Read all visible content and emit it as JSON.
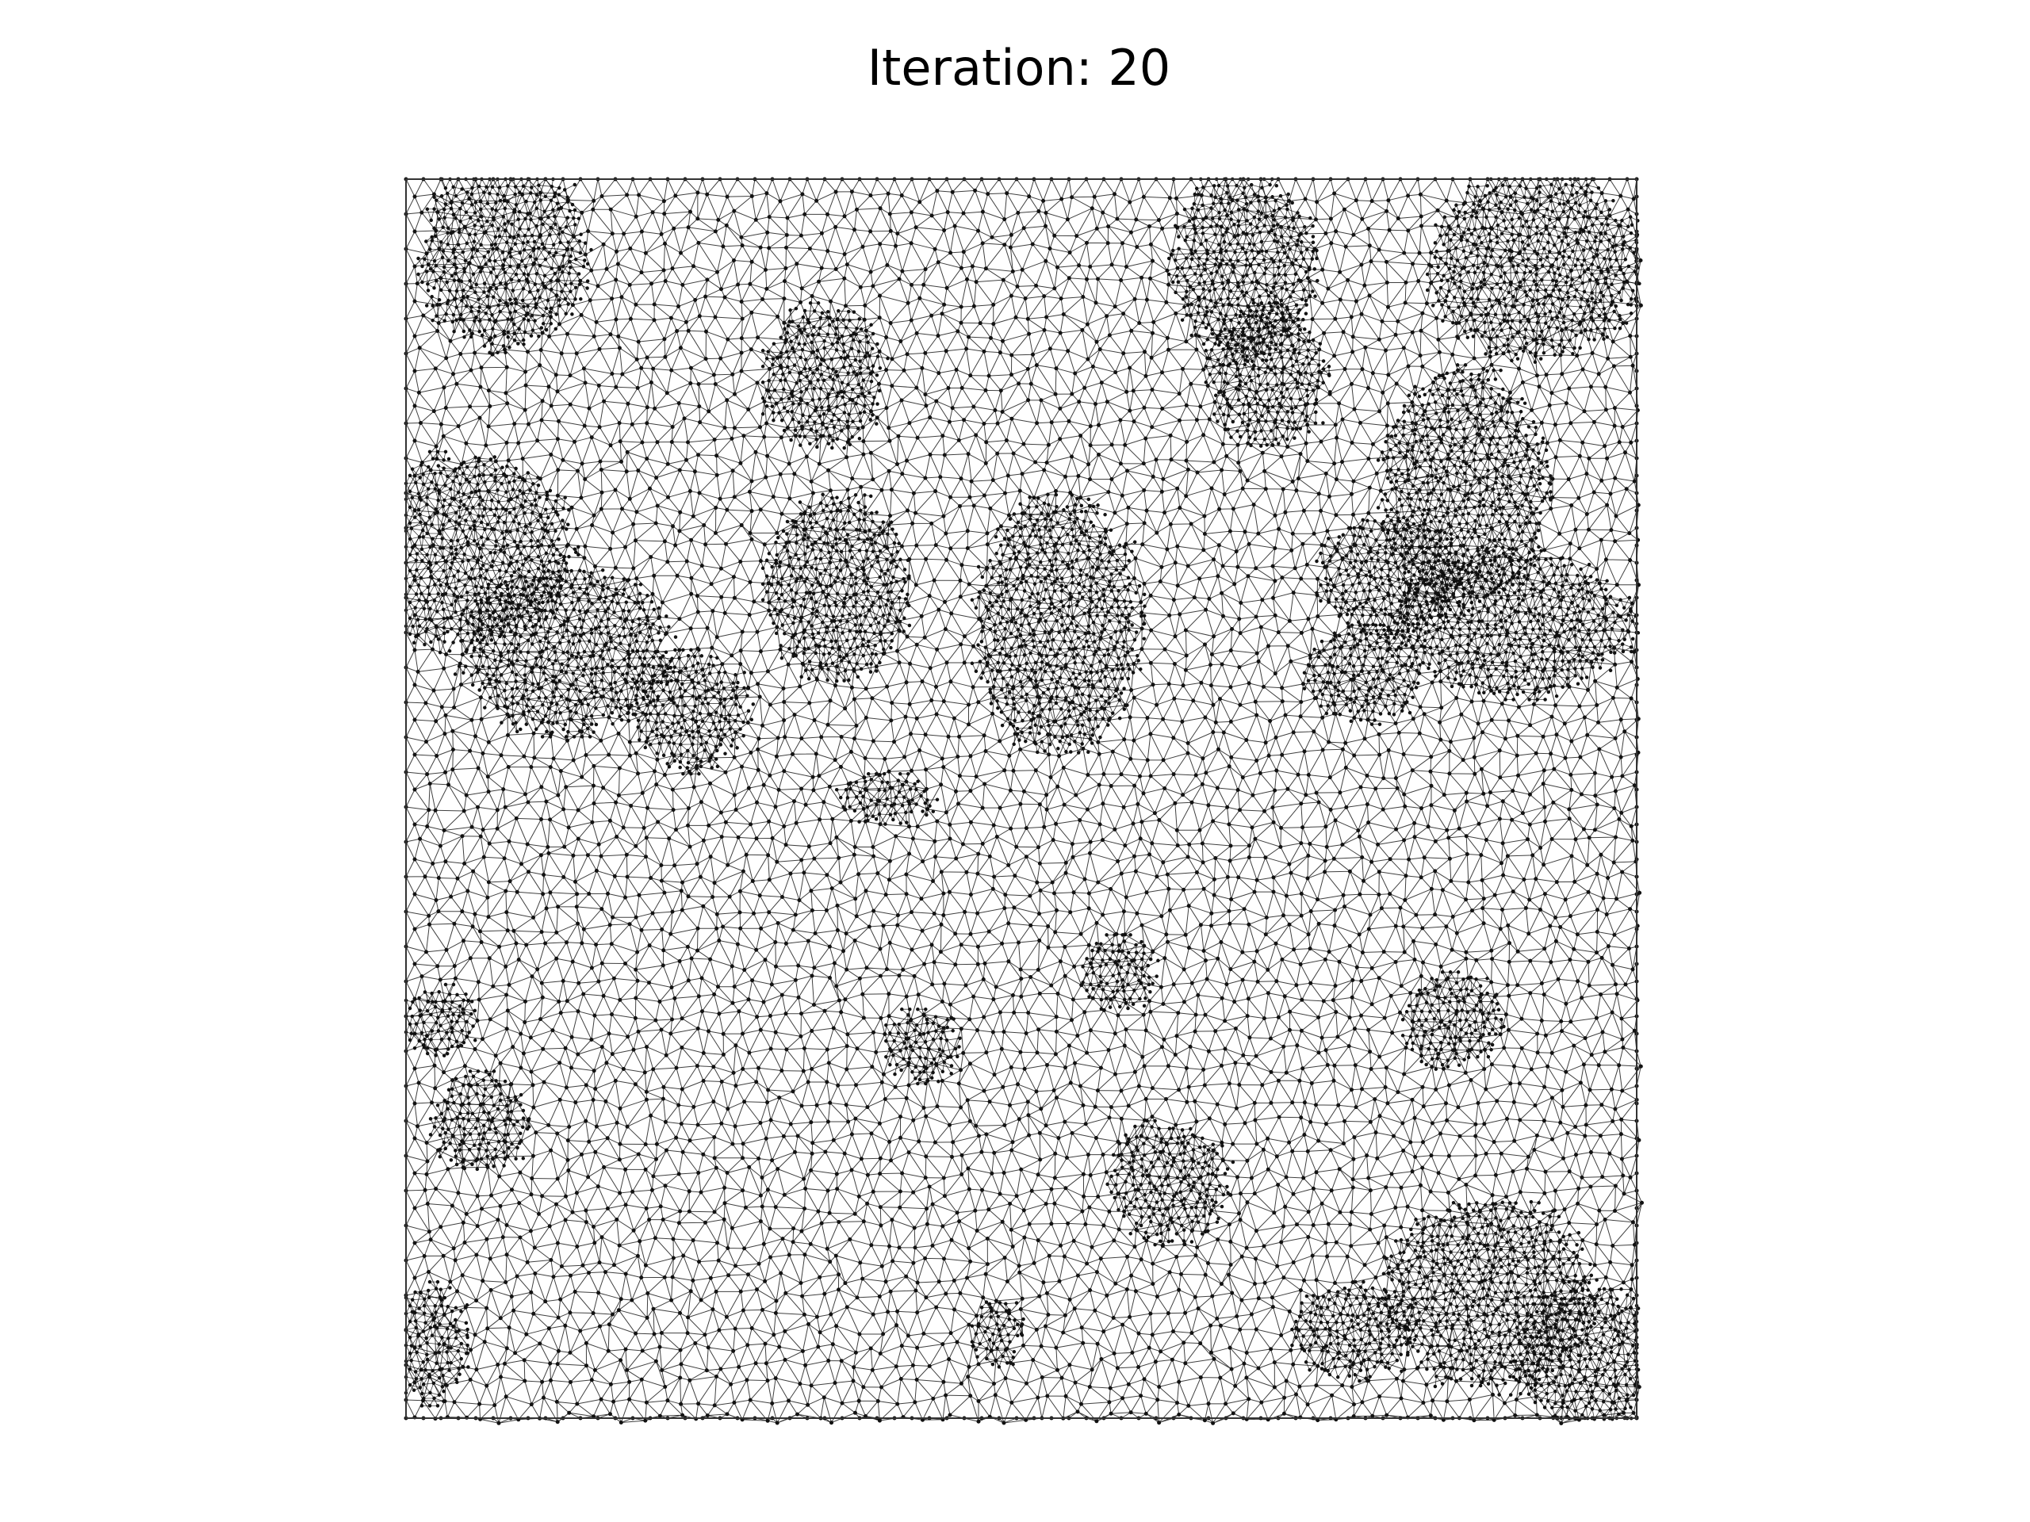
{
  "header": {
    "title": "Iteration: 20"
  }
}
